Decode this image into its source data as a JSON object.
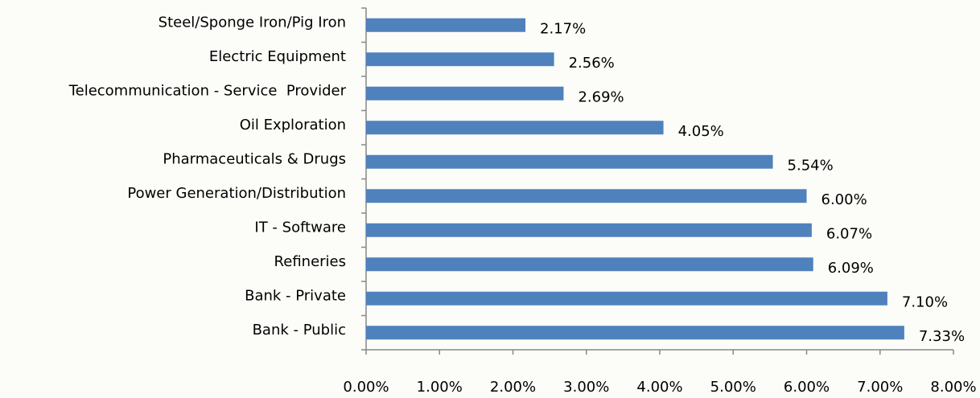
{
  "chart_data": {
    "type": "bar",
    "orientation": "horizontal",
    "categories": [
      "Steel/Sponge Iron/Pig Iron",
      "Electric Equipment",
      "Telecommunication - Service  Provider",
      "Oil Exploration",
      "Pharmaceuticals & Drugs",
      "Power Generation/Distribution",
      "IT - Software",
      "Refineries",
      "Bank - Private",
      "Bank - Public"
    ],
    "values": [
      2.17,
      2.56,
      2.69,
      4.05,
      5.54,
      6.0,
      6.07,
      6.09,
      7.1,
      7.33
    ],
    "value_labels": [
      "2.17%",
      "2.56%",
      "2.69%",
      "4.05%",
      "5.54%",
      "6.00%",
      "6.07%",
      "6.09%",
      "7.10%",
      "7.33%"
    ],
    "color": "#4f81bd",
    "xlim": [
      0,
      8
    ],
    "xticks": [
      {
        "value": 0,
        "label": "0.00%"
      },
      {
        "value": 1,
        "label": "1.00%"
      },
      {
        "value": 2,
        "label": "2.00%"
      },
      {
        "value": 3,
        "label": "3.00%"
      },
      {
        "value": 4,
        "label": "4.00%"
      },
      {
        "value": 5,
        "label": "5.00%"
      },
      {
        "value": 6,
        "label": "6.00%"
      },
      {
        "value": 7,
        "label": "7.00%"
      },
      {
        "value": 8,
        "label": "8.00%"
      }
    ],
    "grid": false
  }
}
